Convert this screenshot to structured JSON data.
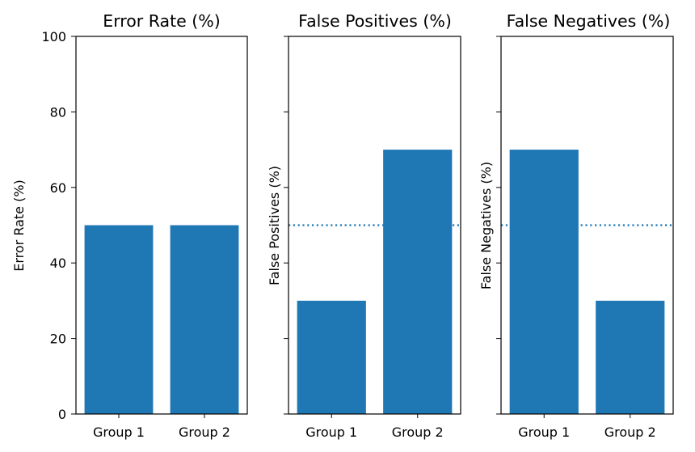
{
  "chart_data": [
    {
      "type": "bar",
      "title": "Error Rate (%)",
      "ylabel": "Error Rate (%)",
      "categories": [
        "Group 1",
        "Group 2"
      ],
      "values": [
        50,
        50
      ],
      "ylim": [
        0,
        100
      ],
      "yticks": [
        "0",
        "20",
        "40",
        "60",
        "80",
        "100"
      ],
      "show_ytick_labels": true,
      "reference_line": null,
      "bar_color": "#1f77b4"
    },
    {
      "type": "bar",
      "title": "False Positives (%)",
      "ylabel": "False Positives (%)",
      "categories": [
        "Group 1",
        "Group 2"
      ],
      "values": [
        30,
        70
      ],
      "ylim": [
        0,
        100
      ],
      "yticks": [
        "0",
        "20",
        "40",
        "60",
        "80",
        "100"
      ],
      "show_ytick_labels": false,
      "reference_line": {
        "y": 50,
        "style": "dotted"
      },
      "bar_color": "#1f77b4"
    },
    {
      "type": "bar",
      "title": "False Negatives (%)",
      "ylabel": "False Negatives (%)",
      "categories": [
        "Group 1",
        "Group 2"
      ],
      "values": [
        70,
        30
      ],
      "ylim": [
        0,
        100
      ],
      "yticks": [
        "0",
        "20",
        "40",
        "60",
        "80",
        "100"
      ],
      "show_ytick_labels": false,
      "reference_line": {
        "y": 50,
        "style": "dotted"
      },
      "bar_color": "#1f77b4"
    }
  ]
}
